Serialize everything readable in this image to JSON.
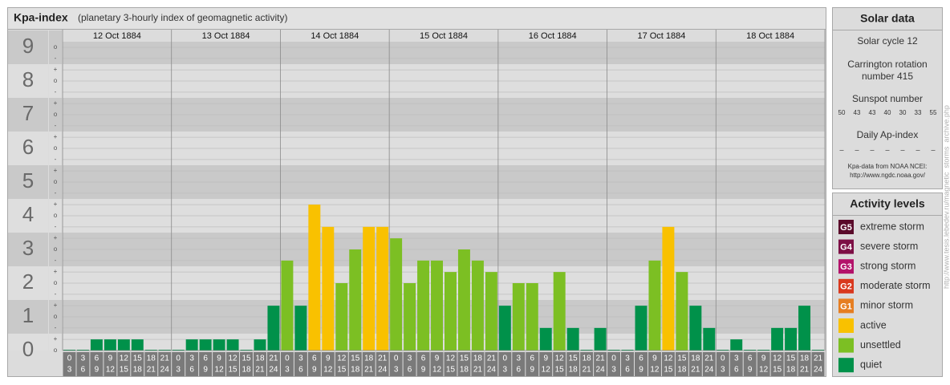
{
  "chart_data": {
    "type": "bar",
    "title": "Kpa-index",
    "subtitle": "(planetary 3-hourly index of geomagnetic activity)",
    "days": [
      "12 Oct 1884",
      "13 Oct 1884",
      "14 Oct 1884",
      "15 Oct 1884",
      "16 Oct 1884",
      "17 Oct 1884",
      "18 Oct 1884"
    ],
    "hours": [
      [
        "0",
        "3"
      ],
      [
        "3",
        "6"
      ],
      [
        "6",
        "9"
      ],
      [
        "9",
        "12"
      ],
      [
        "12",
        "15"
      ],
      [
        "15",
        "18"
      ],
      [
        "18",
        "21"
      ],
      [
        "21",
        "24"
      ]
    ],
    "values": [
      0,
      0,
      0.33,
      0.33,
      0.33,
      0.33,
      0,
      0,
      0,
      0.33,
      0.33,
      0.33,
      0.33,
      0,
      0.33,
      1.33,
      2.67,
      1.33,
      4.33,
      3.67,
      2,
      3,
      3.67,
      3.67,
      3.33,
      2,
      2.67,
      2.67,
      2.33,
      3,
      2.67,
      2.33,
      1.33,
      2,
      2,
      0.67,
      2.33,
      0.67,
      0,
      0.67,
      0,
      0,
      1.33,
      2.67,
      3.67,
      2.33,
      1.33,
      0.67,
      0,
      0.33,
      0,
      0,
      0.67,
      0.67,
      1.33,
      0
    ],
    "colors": [
      "#00914a",
      "#00914a",
      "#00914a",
      "#00914a",
      "#00914a",
      "#00914a",
      "#00914a",
      "#00914a",
      "#00914a",
      "#00914a",
      "#00914a",
      "#00914a",
      "#00914a",
      "#00914a",
      "#00914a",
      "#00914a",
      "#7cbf23",
      "#00914a",
      "#f9c100",
      "#f9c100",
      "#7cbf23",
      "#7cbf23",
      "#f9c100",
      "#f9c100",
      "#7cbf23",
      "#7cbf23",
      "#7cbf23",
      "#7cbf23",
      "#7cbf23",
      "#7cbf23",
      "#7cbf23",
      "#7cbf23",
      "#00914a",
      "#7cbf23",
      "#7cbf23",
      "#00914a",
      "#7cbf23",
      "#00914a",
      "#00914a",
      "#00914a",
      "#00914a",
      "#00914a",
      "#00914a",
      "#7cbf23",
      "#f9c100",
      "#7cbf23",
      "#00914a",
      "#00914a",
      "#00914a",
      "#00914a",
      "#00914a",
      "#00914a",
      "#00914a",
      "#00914a",
      "#00914a",
      "#00914a"
    ],
    "ylim": [
      0,
      9.5
    ],
    "yticks": [
      0,
      1,
      2,
      3,
      4,
      5,
      6,
      7,
      8,
      9
    ],
    "yminor_ticks": [
      {
        "value": 0,
        "label": "o"
      },
      {
        "value": 0.33,
        "label": "+"
      },
      {
        "value": 0.67,
        "label": "-"
      },
      {
        "value": 1,
        "label": "o"
      },
      {
        "value": 1.33,
        "label": "+"
      },
      {
        "value": 1.67,
        "label": "-"
      },
      {
        "value": 2,
        "label": "o"
      },
      {
        "value": 2.33,
        "label": "+"
      },
      {
        "value": 2.67,
        "label": "-"
      },
      {
        "value": 3,
        "label": "o"
      },
      {
        "value": 3.33,
        "label": "+"
      },
      {
        "value": 3.67,
        "label": "-"
      },
      {
        "value": 4,
        "label": "o"
      },
      {
        "value": 4.33,
        "label": "+"
      },
      {
        "value": 4.67,
        "label": "-"
      },
      {
        "value": 5,
        "label": "o"
      },
      {
        "value": 5.33,
        "label": "+"
      },
      {
        "value": 5.67,
        "label": "-"
      },
      {
        "value": 6,
        "label": "o"
      },
      {
        "value": 6.33,
        "label": "+"
      },
      {
        "value": 6.67,
        "label": "-"
      },
      {
        "value": 7,
        "label": "o"
      },
      {
        "value": 7.33,
        "label": "+"
      },
      {
        "value": 7.67,
        "label": "-"
      },
      {
        "value": 8,
        "label": "o"
      },
      {
        "value": 8.33,
        "label": "+"
      },
      {
        "value": 8.67,
        "label": "-"
      },
      {
        "value": 9,
        "label": "o"
      }
    ],
    "grid": true
  },
  "solar_data": {
    "title": "Solar data",
    "solar_cycle": "Solar cycle 12",
    "carrington": [
      "Carrington rotation",
      "number 415"
    ],
    "sunspot_title": "Sunspot number",
    "sunspots": [
      50,
      43,
      43,
      40,
      30,
      33,
      55
    ],
    "ap_title": "Daily Ap-index",
    "ap": [
      "–",
      "–",
      "–",
      "–",
      "–",
      "–",
      "–"
    ],
    "source": [
      "Kpa-data from NOAA NCEI:",
      "http://www.ngdc.noaa.gov/"
    ]
  },
  "activity_levels": {
    "title": "Activity levels",
    "items": [
      {
        "badge": "G5",
        "label": "extreme storm",
        "color": "#5a0a2a"
      },
      {
        "badge": "G4",
        "label": "severe storm",
        "color": "#7d0f45"
      },
      {
        "badge": "G3",
        "label": "strong storm",
        "color": "#b3126a"
      },
      {
        "badge": "G2",
        "label": "moderate storm",
        "color": "#d9381e"
      },
      {
        "badge": "G1",
        "label": "minor storm",
        "color": "#e67e22"
      },
      {
        "label": "active",
        "color": "#f9c100"
      },
      {
        "label": "unsettled",
        "color": "#7cbf23"
      },
      {
        "label": "quiet",
        "color": "#00914a"
      }
    ]
  },
  "watermark": "http://www.tesis.lebedev.ru/magnetic_storms_archive.php"
}
